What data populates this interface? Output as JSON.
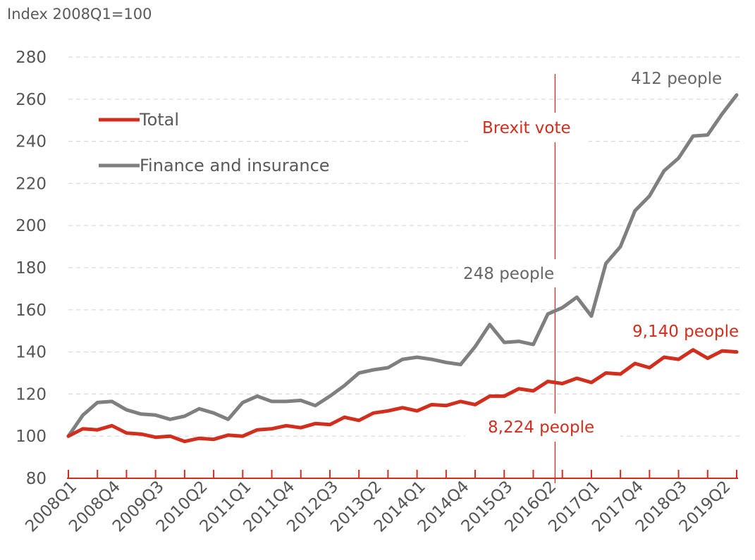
{
  "chart_data": {
    "type": "line",
    "ylabel": "Index 2008Q1=100",
    "ylim": [
      80,
      280
    ],
    "yticks": [
      80,
      100,
      120,
      140,
      160,
      180,
      200,
      220,
      240,
      260,
      280
    ],
    "grid": true,
    "legend_position": "top-left",
    "x_labels": [
      "2008Q1",
      "2008Q4",
      "2009Q3",
      "2010Q2",
      "2011Q1",
      "2011Q4",
      "2012Q3",
      "2013Q2",
      "2014Q1",
      "2014Q4",
      "2015Q3",
      "2016Q2",
      "2017Q1",
      "2017Q4",
      "2018Q3",
      "2019Q2"
    ],
    "x": [
      "2008Q1",
      "2008Q2",
      "2008Q3",
      "2008Q4",
      "2009Q1",
      "2009Q2",
      "2009Q3",
      "2009Q4",
      "2010Q1",
      "2010Q2",
      "2010Q3",
      "2010Q4",
      "2011Q1",
      "2011Q2",
      "2011Q3",
      "2011Q4",
      "2012Q1",
      "2012Q2",
      "2012Q3",
      "2012Q4",
      "2013Q1",
      "2013Q2",
      "2013Q3",
      "2013Q4",
      "2014Q1",
      "2014Q2",
      "2014Q3",
      "2014Q4",
      "2015Q1",
      "2015Q2",
      "2015Q3",
      "2015Q4",
      "2016Q1",
      "2016Q2",
      "2016Q3",
      "2016Q4",
      "2017Q1",
      "2017Q2",
      "2017Q3",
      "2017Q4",
      "2018Q1",
      "2018Q2",
      "2018Q3",
      "2018Q4",
      "2019Q1",
      "2019Q2",
      "2019Q3"
    ],
    "series": [
      {
        "name": "Total",
        "color": "#d22e1e",
        "values": [
          100,
          103.5,
          103,
          105,
          101.5,
          101,
          99.5,
          100,
          97.5,
          99,
          98.5,
          100.5,
          100,
          103,
          103.5,
          105,
          104,
          106,
          105.5,
          109,
          107.5,
          111,
          112,
          113.5,
          112,
          115,
          114.5,
          116.5,
          115,
          119,
          119,
          122.5,
          121.5,
          126,
          125,
          127.5,
          125.5,
          130,
          129.5,
          134.5,
          132.5,
          137.5,
          136.5,
          141,
          137,
          140.5,
          140
        ]
      },
      {
        "name": "Finance and insurance",
        "color": "#7f7f7f",
        "values": [
          100,
          110,
          116,
          116.5,
          112.5,
          110.5,
          110,
          108,
          109.5,
          113,
          111,
          108,
          116,
          119,
          116.5,
          116.5,
          117,
          114.5,
          119,
          124,
          130,
          131.5,
          132.5,
          136.5,
          137.5,
          136.5,
          135,
          134,
          142.5,
          153,
          144.5,
          145,
          143.5,
          158,
          161,
          166,
          157,
          182,
          190,
          207,
          214,
          226,
          232,
          242.5,
          243,
          253,
          262
        ]
      }
    ],
    "annotations": {
      "brexit": "Brexit vote",
      "finance_2016": "248 people",
      "finance_end": "412 people",
      "total_2016": "8,224 people",
      "total_end": "9,140 people"
    },
    "brexit_x": "2016Q2"
  },
  "colors": {
    "total": "#d22e1e",
    "finance": "#7f7f7f",
    "grid": "#d9d9d9",
    "axis_line": "#d22e1e",
    "tick_text": "#555555"
  }
}
